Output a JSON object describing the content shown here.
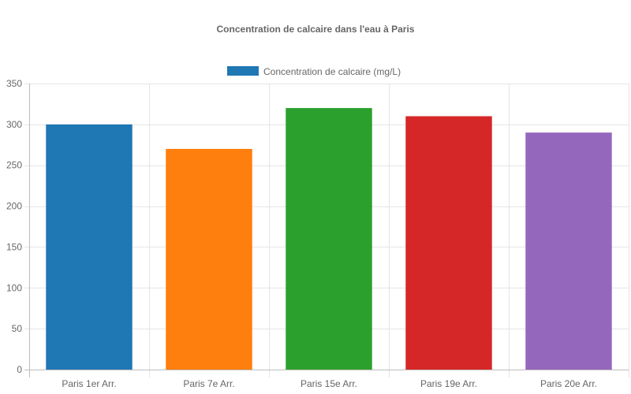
{
  "chart_data": {
    "type": "bar",
    "title": "Concentration de calcaire dans l'eau à Paris",
    "categories": [
      "Paris 1er Arr.",
      "Paris 7e Arr.",
      "Paris 15e Arr.",
      "Paris 19e Arr.",
      "Paris 20e Arr."
    ],
    "series": [
      {
        "name": "Concentration de calcaire (mg/L)",
        "values": [
          300,
          270,
          320,
          310,
          290
        ],
        "colors": [
          "#1f77b4",
          "#ff7f0e",
          "#2ca02c",
          "#d62728",
          "#9467bd"
        ]
      }
    ],
    "legend_color": "#1f77b4",
    "ylim": [
      0,
      350
    ],
    "yticks": [
      0,
      50,
      100,
      150,
      200,
      250,
      300,
      350
    ],
    "grid": true,
    "legend_position": "top"
  }
}
